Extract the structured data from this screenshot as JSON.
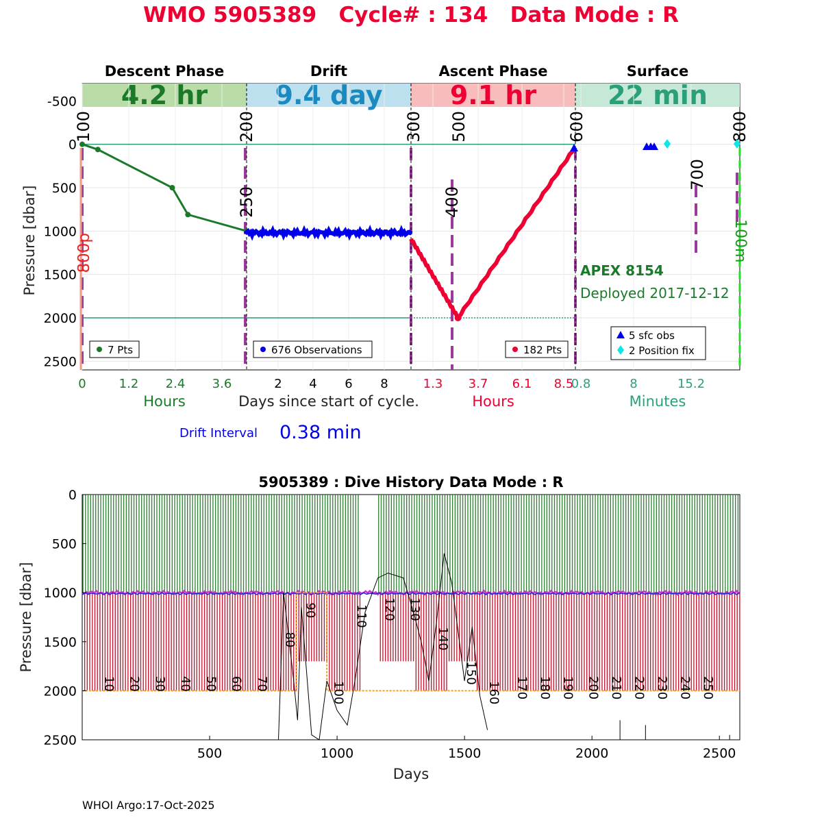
{
  "title": "WMO 5905389   Cycle# : 134   Data Mode : R",
  "footer": "WHOI Argo:17-Oct-2025",
  "colors": {
    "title": "#ee0033",
    "descent": "#1a7a2a",
    "drift": "#0000ee",
    "ascent": "#ee0033",
    "surface": "#2aa07a",
    "marker": "#9a3a9a",
    "drift_band": "#bde0ee",
    "descent_band": "#b9dca9",
    "ascent_band": "#f9bcbc",
    "surface_band": "#c6e8d6"
  },
  "chart_data": [
    {
      "type": "line",
      "title": "",
      "ylabel": "Pressure [dbar]",
      "xlabel": "Days since start of cycle.",
      "ylim": [
        2600,
        -700
      ],
      "yticks": [
        "-500",
        "0",
        "500",
        "1000",
        "1500",
        "2000",
        "2500"
      ],
      "phases": [
        {
          "name": "Descent Phase",
          "duration": "4.2 hr",
          "axis_label": "Hours",
          "ticks": [
            "0",
            "1.2",
            "2.4",
            "3.6"
          ],
          "legend": "7 Pts"
        },
        {
          "name": "Drift",
          "duration": "9.4 day",
          "axis_label": "",
          "ticks": [
            "2",
            "4",
            "6",
            "8"
          ],
          "legend": "676 Observations"
        },
        {
          "name": "Ascent Phase",
          "duration": "9.1 hr",
          "axis_label": "Hours",
          "ticks": [
            "1.3",
            "3.7",
            "6.1",
            "8.5"
          ],
          "legend": "182 Pts"
        },
        {
          "name": "Surface",
          "duration": "22 min",
          "axis_label": "Minutes",
          "ticks": [
            "0.8",
            "8",
            "15.2"
          ],
          "legend": [
            "5 sfc obs",
            "2 Position fix"
          ]
        }
      ],
      "marker_labels": [
        "100",
        "200",
        "250",
        "300",
        "400",
        "500",
        "600",
        "700",
        "800"
      ],
      "side_labels": {
        "left": "800p",
        "right": "100m"
      },
      "float_model": "APEX 8154",
      "deployed": "Deployed 2017-12-12",
      "drift_interval_label": "Drift Interval",
      "drift_interval_value": "0.38 min",
      "series": [
        {
          "name": "descent",
          "x_hours": [
            0,
            0.4,
            2.3,
            2.7,
            4.2
          ],
          "pressure": [
            0,
            60,
            500,
            810,
            1000
          ]
        },
        {
          "name": "drift",
          "x_days": [
            0,
            9.4
          ],
          "pressure": [
            1020,
            1020
          ]
        },
        {
          "name": "ascent",
          "x_hours": [
            0,
            2.6,
            9.1
          ],
          "pressure": [
            1090,
            2000,
            30
          ]
        }
      ],
      "reference_lines": [
        0,
        2000
      ]
    },
    {
      "type": "line",
      "title": "5905389 : Dive History      Data Mode : R",
      "xlabel": "Days",
      "ylabel": "Pressure [dbar]",
      "xlim": [
        0,
        2580
      ],
      "ylim": [
        2500,
        0
      ],
      "xticks": [
        500,
        1000,
        1500,
        2000,
        2500
      ],
      "yticks": [
        0,
        500,
        1000,
        1500,
        2000,
        2500
      ],
      "cycle_labels": [
        "10",
        "20",
        "30",
        "40",
        "50",
        "60",
        "70",
        "80",
        "90",
        "100",
        "110",
        "120",
        "130",
        "140",
        "150",
        "160",
        "170",
        "180",
        "190",
        "200",
        "210",
        "220",
        "230",
        "240",
        "250"
      ],
      "cycle_label_days": [
        90,
        190,
        290,
        390,
        490,
        590,
        690,
        800,
        880,
        990,
        1080,
        1190,
        1290,
        1400,
        1510,
        1600,
        1710,
        1800,
        1890,
        1990,
        2080,
        2170,
        2260,
        2350,
        2440
      ],
      "park_pressure": 1000,
      "profile_pressure": 2000
    }
  ]
}
